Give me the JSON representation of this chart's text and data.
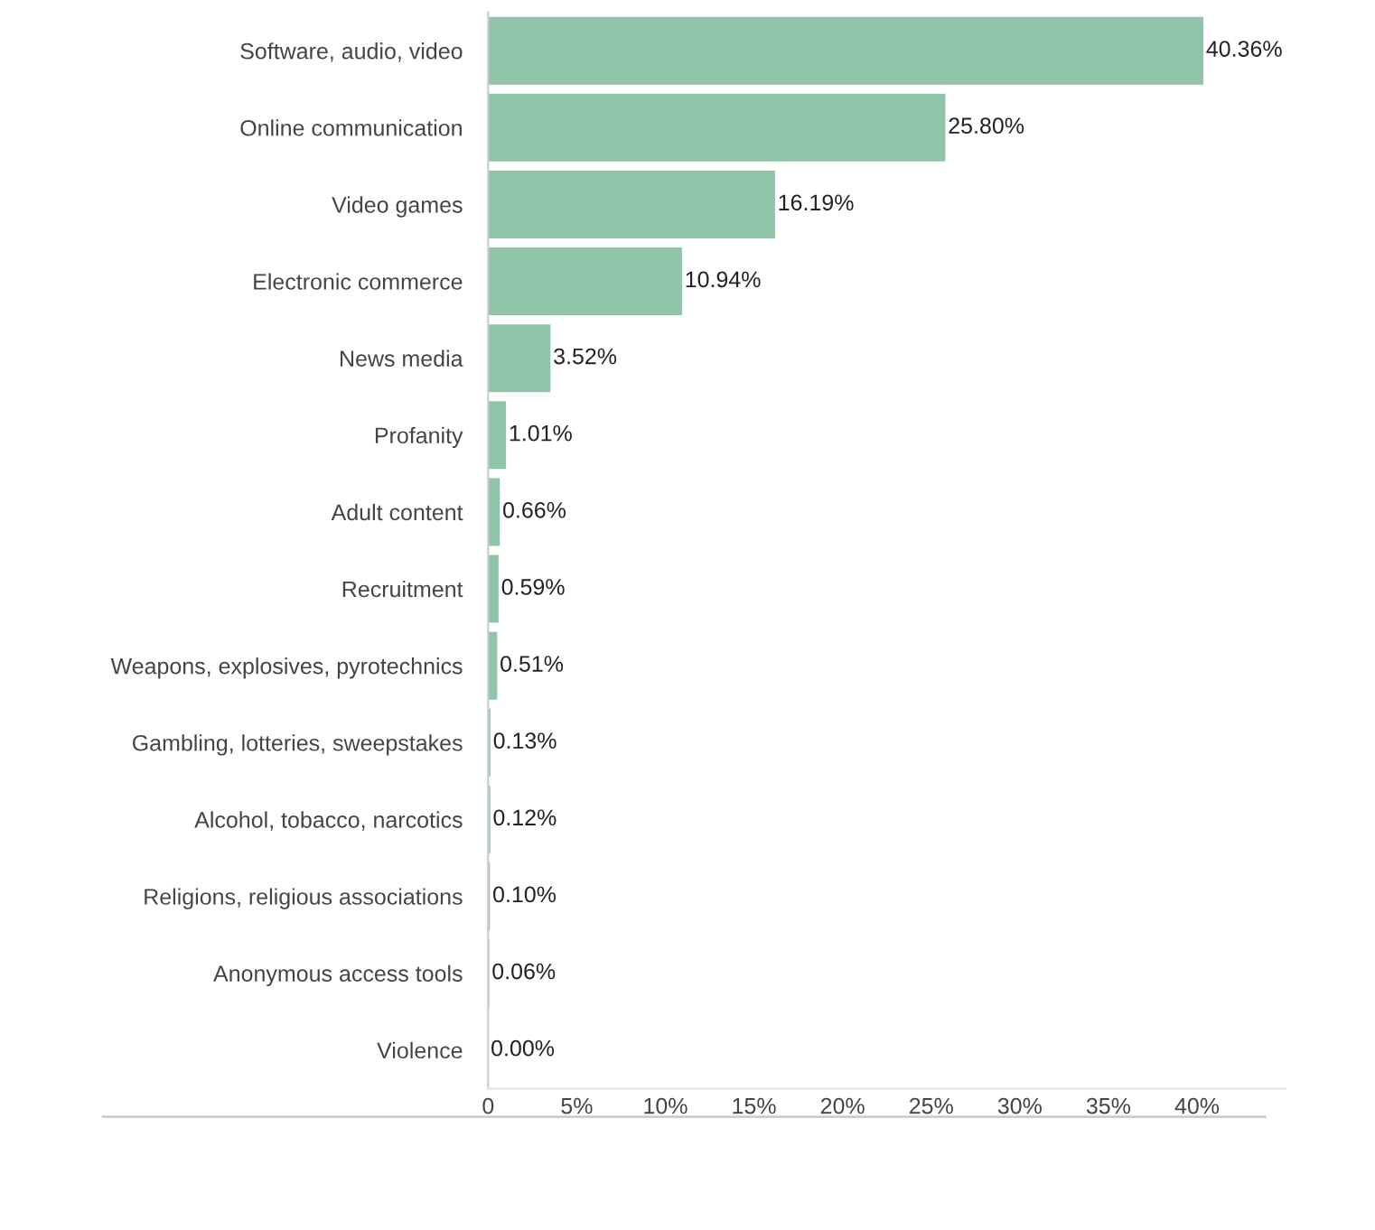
{
  "chart_data": {
    "type": "bar",
    "orientation": "horizontal",
    "categories": [
      "Software, audio, video",
      "Online communication",
      "Video games",
      "Electronic commerce",
      "News media",
      "Profanity",
      "Adult content",
      "Recruitment",
      "Weapons, explosives, pyrotechnics",
      "Gambling, lotteries, sweepstakes",
      "Alcohol, tobacco, narcotics",
      "Religions, religious associations",
      "Anonymous access tools",
      "Violence"
    ],
    "values": [
      40.36,
      25.8,
      16.19,
      10.94,
      3.52,
      1.01,
      0.66,
      0.59,
      0.51,
      0.13,
      0.12,
      0.1,
      0.06,
      0.0
    ],
    "value_labels": [
      "40.36%",
      "25.80%",
      "16.19%",
      "10.94%",
      "3.52%",
      "1.01%",
      "0.66%",
      "0.59%",
      "0.51%",
      "0.13%",
      "0.12%",
      "0.10%",
      "0.06%",
      "0.00%"
    ],
    "color": "#8fc4a8",
    "xlim": [
      0,
      45
    ],
    "xticks": [
      0,
      {
        "value": 5,
        "label": "5%"
      },
      {
        "value": 10,
        "label": "10%"
      },
      {
        "value": 15,
        "label": "15%"
      },
      {
        "value": 20,
        "label": "20%"
      },
      {
        "value": 25,
        "label": "25%"
      },
      {
        "value": 30,
        "label": "30%"
      },
      {
        "value": 35,
        "label": "35%"
      },
      {
        "value": 40,
        "label": "40%"
      }
    ],
    "grid": false,
    "legend": false
  }
}
